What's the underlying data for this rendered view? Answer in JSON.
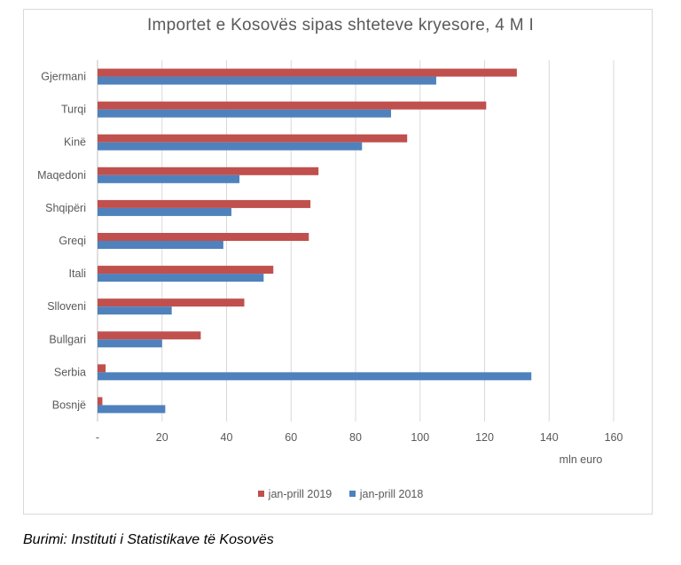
{
  "chart_data": {
    "type": "bar",
    "orientation": "horizontal",
    "title": "Importet e Kosovës sipas shteteve kryesore, 4 M I",
    "xlabel": "mln euro",
    "ylabel": "",
    "xlim": [
      0,
      160
    ],
    "x_ticks": [
      "-",
      "20",
      "40",
      "60",
      "80",
      "100",
      "120",
      "140",
      "160"
    ],
    "x_tick_values": [
      0,
      20,
      40,
      60,
      80,
      100,
      120,
      140,
      160
    ],
    "grid": "vertical",
    "legend_position": "bottom",
    "categories": [
      "Gjermani",
      "Turqi",
      "Kinë",
      "Maqedoni",
      "Shqipëri",
      "Greqi",
      "Itali",
      "Slloveni",
      "Bullgari",
      "Serbia",
      "Bosnjë"
    ],
    "series": [
      {
        "name": "jan-prill 2019",
        "color": "#c0504d",
        "values": [
          130,
          120.5,
          96,
          68.5,
          66,
          65.5,
          54.5,
          45.5,
          32,
          2.5,
          1.5
        ]
      },
      {
        "name": "jan-prill 2018",
        "color": "#4f81bd",
        "values": [
          105,
          91,
          82,
          44,
          41.5,
          39,
          51.5,
          23,
          20,
          134.5,
          21
        ]
      }
    ]
  },
  "source_text": "Burimi: Instituti i Statistikave të Kosovës"
}
